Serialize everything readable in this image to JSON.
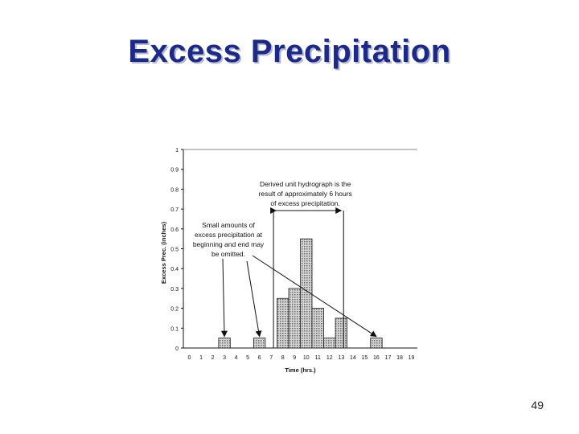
{
  "slide": {
    "title": "Excess Precipitation",
    "page_number": "49"
  },
  "colors": {
    "title": "#1a2a8c",
    "bar_fill": "#b9b9b9",
    "bar_stroke": "#222222",
    "gridline": "#888888"
  },
  "chart_data": {
    "type": "bar",
    "xlabel": "Time (hrs.)",
    "ylabel": "Excess Prec. (inches)",
    "ylim": [
      0,
      1
    ],
    "xlim": [
      0,
      19
    ],
    "grid": "horizontal line at 1.0 only",
    "x_ticks": [
      "0",
      "1",
      "2",
      "3",
      "4",
      "5",
      "6",
      "7",
      "8",
      "9",
      "10",
      "11",
      "12",
      "13",
      "14",
      "15",
      "16",
      "17",
      "18",
      "19"
    ],
    "y_ticks": [
      "0",
      "0.1",
      "0.2",
      "0.3",
      "0.4",
      "0.5",
      "0.6",
      "0.7",
      "0.8",
      "0.9",
      "1"
    ],
    "x": [
      3,
      6,
      8,
      9,
      10,
      11,
      12,
      13,
      16
    ],
    "values": [
      0.05,
      0.05,
      0.25,
      0.3,
      0.55,
      0.2,
      0.05,
      0.15,
      0.05
    ],
    "annotations": [
      {
        "id": "derived",
        "lines": [
          "Derived unit hydrograph is the",
          "result of approximately 6 hours",
          "of excess precipitation."
        ],
        "bracket_from": 7.2,
        "bracket_to": 13.2
      },
      {
        "id": "small",
        "lines": [
          "Small amounts of",
          "excess precipitation at",
          "beginning and end may",
          "be omitted."
        ],
        "arrow_targets": [
          3,
          6,
          16
        ]
      }
    ]
  }
}
